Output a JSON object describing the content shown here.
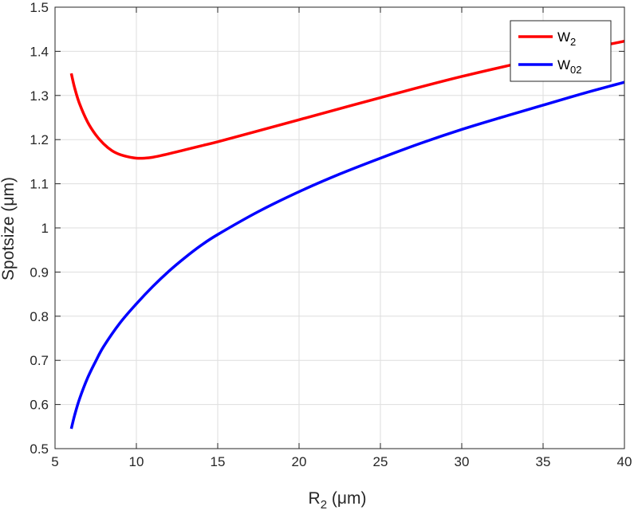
{
  "chart_data": {
    "type": "line",
    "xlabel": {
      "main": "R",
      "sub": "2",
      "rest": " (μm)"
    },
    "ylabel": "Spotsize (μm)",
    "xlim": [
      5,
      40
    ],
    "ylim": [
      0.5,
      1.5
    ],
    "xticks": [
      5,
      10,
      15,
      20,
      25,
      30,
      35,
      40
    ],
    "yticks": [
      0.5,
      0.6,
      0.7,
      0.8,
      0.9,
      1.0,
      1.1,
      1.2,
      1.3,
      1.4,
      1.5
    ],
    "xtick_labels": [
      "5",
      "10",
      "15",
      "20",
      "25",
      "30",
      "35",
      "40"
    ],
    "ytick_labels": [
      "0.5",
      "0.6",
      "0.7",
      "0.8",
      "0.9",
      "1",
      "1.1",
      "1.2",
      "1.3",
      "1.4",
      "1.5"
    ],
    "grid": true,
    "legend_position": "top-right",
    "series": [
      {
        "name": "W",
        "name_sub": "2",
        "color": "#ff0000",
        "x": [
          6.0,
          6.2,
          6.5,
          7.0,
          7.5,
          8.0,
          8.5,
          9.0,
          9.5,
          10.0,
          10.5,
          11.0,
          12.0,
          13.0,
          14.0,
          15.0,
          17.0,
          20.0,
          25.0,
          30.0,
          35.0,
          40.0
        ],
        "y": [
          1.35,
          1.318,
          1.282,
          1.24,
          1.211,
          1.19,
          1.175,
          1.166,
          1.161,
          1.158,
          1.158,
          1.16,
          1.168,
          1.177,
          1.186,
          1.195,
          1.215,
          1.245,
          1.295,
          1.343,
          1.385,
          1.423
        ]
      },
      {
        "name": "W",
        "name_sub": "02",
        "color": "#0000ff",
        "x": [
          6.0,
          6.2,
          6.5,
          7.0,
          7.5,
          8.0,
          9.0,
          10.0,
          11.0,
          12.0,
          13.0,
          14.0,
          15.0,
          17.5,
          20.0,
          22.5,
          25.0,
          27.5,
          30.0,
          32.5,
          35.0,
          37.5,
          40.0
        ],
        "y": [
          0.545,
          0.575,
          0.612,
          0.66,
          0.698,
          0.732,
          0.785,
          0.828,
          0.867,
          0.902,
          0.933,
          0.961,
          0.985,
          1.037,
          1.082,
          1.122,
          1.158,
          1.192,
          1.223,
          1.251,
          1.278,
          1.305,
          1.33
        ]
      }
    ]
  }
}
